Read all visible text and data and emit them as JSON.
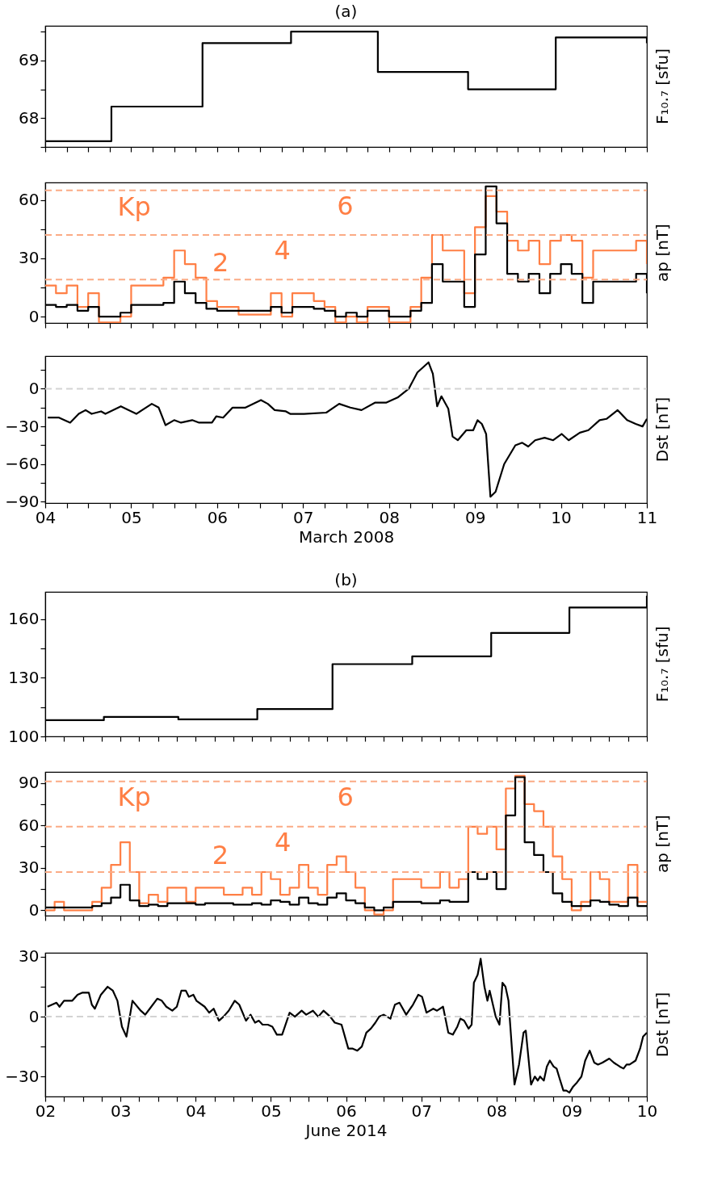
{
  "chart_data": [
    {
      "type": "step",
      "title": "(a)",
      "ylabel": "F₁₀.₇ [sfu]",
      "xlim": [
        4,
        11
      ],
      "ylim": [
        67.5,
        69.6
      ],
      "tick_labels": "y",
      "grid": false,
      "xticks": [
        {
          "value": 4,
          "label": null
        },
        {
          "value": 4.25,
          "label": null
        },
        {
          "value": 4.5,
          "label": null
        },
        {
          "value": 4.75,
          "label": null
        },
        {
          "value": 5,
          "label": null
        },
        {
          "value": 5.25,
          "label": null
        },
        {
          "value": 5.5,
          "label": null
        },
        {
          "value": 5.75,
          "label": null
        },
        {
          "value": 6,
          "label": null
        },
        {
          "value": 6.25,
          "label": null
        },
        {
          "value": 6.5,
          "label": null
        },
        {
          "value": 6.75,
          "label": null
        },
        {
          "value": 7,
          "label": null
        },
        {
          "value": 7.25,
          "label": null
        },
        {
          "value": 7.5,
          "label": null
        },
        {
          "value": 7.75,
          "label": null
        },
        {
          "value": 8,
          "label": null
        },
        {
          "value": 8.25,
          "label": null
        },
        {
          "value": 8.5,
          "label": null
        },
        {
          "value": 8.75,
          "label": null
        },
        {
          "value": 9,
          "label": null
        },
        {
          "value": 9.25,
          "label": null
        },
        {
          "value": 9.5,
          "label": null
        },
        {
          "value": 9.75,
          "label": null
        },
        {
          "value": 10,
          "label": null
        },
        {
          "value": 10.25,
          "label": null
        },
        {
          "value": 10.5,
          "label": null
        },
        {
          "value": 10.75,
          "label": null
        },
        {
          "value": 11,
          "label": null
        }
      ],
      "yticks": [
        {
          "value": 67.5,
          "label": null
        },
        68,
        {
          "value": 68.5,
          "label": null
        },
        69,
        {
          "value": 69.5,
          "label": null
        }
      ],
      "series": [
        {
          "color": "#000000",
          "x": [
            4,
            4.77,
            5.83,
            6.86,
            7.87,
            8.92,
            9.94,
            11
          ],
          "values": [
            67.6,
            68.2,
            69.3,
            69.5,
            68.8,
            68.5,
            69.4,
            69.3
          ]
        }
      ]
    },
    {
      "type": "step",
      "ylabel": "ap [nT]",
      "xlim": [
        4,
        11
      ],
      "ylim": [
        -3.3,
        69
      ],
      "tick_labels": "y",
      "grid": false,
      "xticks": [
        {
          "value": 4,
          "label": null
        },
        {
          "value": 4.25,
          "label": null
        },
        {
          "value": 4.5,
          "label": null
        },
        {
          "value": 4.75,
          "label": null
        },
        {
          "value": 5,
          "label": null
        },
        {
          "value": 5.25,
          "label": null
        },
        {
          "value": 5.5,
          "label": null
        },
        {
          "value": 5.75,
          "label": null
        },
        {
          "value": 6,
          "label": null
        },
        {
          "value": 6.25,
          "label": null
        },
        {
          "value": 6.5,
          "label": null
        },
        {
          "value": 6.75,
          "label": null
        },
        {
          "value": 7,
          "label": null
        },
        {
          "value": 7.25,
          "label": null
        },
        {
          "value": 7.5,
          "label": null
        },
        {
          "value": 7.75,
          "label": null
        },
        {
          "value": 8,
          "label": null
        },
        {
          "value": 8.25,
          "label": null
        },
        {
          "value": 8.5,
          "label": null
        },
        {
          "value": 8.75,
          "label": null
        },
        {
          "value": 9,
          "label": null
        },
        {
          "value": 9.25,
          "label": null
        },
        {
          "value": 9.5,
          "label": null
        },
        {
          "value": 9.75,
          "label": null
        },
        {
          "value": 10,
          "label": null
        },
        {
          "value": 10.25,
          "label": null
        },
        {
          "value": 10.5,
          "label": null
        },
        {
          "value": 10.75,
          "label": null
        },
        {
          "value": 11,
          "label": null
        }
      ],
      "yticks": [
        0,
        {
          "value": 15,
          "label": null
        },
        30,
        {
          "value": 45,
          "label": null
        },
        60
      ],
      "ref_lines": [
        {
          "axis": "y",
          "value": 19,
          "color": "#fbab85",
          "line_style": "dashed"
        },
        {
          "axis": "y",
          "value": 42,
          "color": "#fbab85",
          "line_style": "dashed"
        },
        {
          "axis": "y",
          "value": 65,
          "color": "#fbab85",
          "line_style": "dashed"
        }
      ],
      "annotations": [
        {
          "text": "2",
          "x": 6.04,
          "y": 19
        },
        {
          "text": "4",
          "x": 6.76,
          "y": 42
        },
        {
          "text": "6",
          "x": 7.49,
          "y": 65
        }
      ],
      "x": [
        4,
        4.125,
        4.25,
        4.375,
        4.5,
        4.625,
        4.75,
        4.875,
        5,
        5.125,
        5.25,
        5.375,
        5.5,
        5.625,
        5.75,
        5.875,
        6,
        6.125,
        6.25,
        6.375,
        6.5,
        6.625,
        6.75,
        6.875,
        7,
        7.125,
        7.25,
        7.375,
        7.5,
        7.625,
        7.75,
        7.875,
        8,
        8.125,
        8.25,
        8.375,
        8.5,
        8.625,
        8.75,
        8.875,
        9,
        9.125,
        9.25,
        9.375,
        9.5,
        9.625,
        9.75,
        9.875,
        10,
        10.125,
        10.25,
        10.375,
        10.5,
        10.625,
        10.75,
        10.875,
        11
      ],
      "series": [
        {
          "name": "Kp",
          "color": "#ff7f45",
          "values": [
            16,
            12,
            16,
            5,
            12,
            -3,
            -3,
            0,
            16,
            16,
            16,
            20,
            34,
            27,
            20,
            8,
            5,
            5,
            1,
            1,
            1,
            12,
            0,
            12,
            12,
            8,
            5,
            -3,
            0,
            -3,
            5,
            5,
            -3,
            -3,
            5,
            20,
            42,
            34,
            34,
            12,
            46,
            62,
            54,
            39,
            34,
            39,
            27,
            39,
            42,
            39,
            20,
            34,
            34,
            34,
            34,
            39,
            27
          ]
        },
        {
          "color": "#000000",
          "values": [
            6,
            5,
            6,
            3,
            5,
            0,
            0,
            2,
            6,
            6,
            6,
            7,
            18,
            12,
            7,
            4,
            3,
            3,
            3,
            3,
            3,
            5,
            2,
            5,
            5,
            4,
            3,
            0,
            2,
            0,
            3,
            3,
            0,
            0,
            3,
            7,
            27,
            18,
            18,
            5,
            32,
            67,
            48,
            22,
            18,
            22,
            12,
            22,
            27,
            22,
            7,
            18,
            18,
            18,
            18,
            22,
            12
          ]
        }
      ]
    },
    {
      "type": "line",
      "ylabel": "Dst [nT]",
      "xlabel": "March 2008",
      "xlim": [
        4,
        11
      ],
      "ylim": [
        -91,
        26
      ],
      "grid": false,
      "xticks": [
        {
          "value": 4,
          "label": "04"
        },
        {
          "value": 4.25,
          "label": null
        },
        {
          "value": 4.5,
          "label": null
        },
        {
          "value": 4.75,
          "label": null
        },
        {
          "value": 5,
          "label": "05"
        },
        {
          "value": 5.25,
          "label": null
        },
        {
          "value": 5.5,
          "label": null
        },
        {
          "value": 5.75,
          "label": null
        },
        {
          "value": 6,
          "label": "06"
        },
        {
          "value": 6.25,
          "label": null
        },
        {
          "value": 6.5,
          "label": null
        },
        {
          "value": 6.75,
          "label": null
        },
        {
          "value": 7,
          "label": "07"
        },
        {
          "value": 7.25,
          "label": null
        },
        {
          "value": 7.5,
          "label": null
        },
        {
          "value": 7.75,
          "label": null
        },
        {
          "value": 8,
          "label": "08"
        },
        {
          "value": 8.25,
          "label": null
        },
        {
          "value": 8.5,
          "label": null
        },
        {
          "value": 8.75,
          "label": null
        },
        {
          "value": 9,
          "label": "09"
        },
        {
          "value": 9.25,
          "label": null
        },
        {
          "value": 9.5,
          "label": null
        },
        {
          "value": 9.75,
          "label": null
        },
        {
          "value": 10,
          "label": "10"
        },
        {
          "value": 10.25,
          "label": null
        },
        {
          "value": 10.5,
          "label": null
        },
        {
          "value": 10.75,
          "label": null
        },
        {
          "value": 11,
          "label": "11"
        }
      ],
      "yticks": [
        -90,
        {
          "value": -75,
          "label": null
        },
        -60,
        {
          "value": -45,
          "label": null
        },
        -30,
        {
          "value": -15,
          "label": null
        },
        0,
        {
          "value": 15,
          "label": null
        }
      ],
      "ref_lines": [
        {
          "axis": "y",
          "value": 0,
          "color": "#d3d3d3",
          "line_style": "dashed"
        }
      ],
      "series": [
        {
          "color": "#000000",
          "x": [
            4.03,
            4.16,
            4.29,
            4.39,
            4.47,
            4.54,
            4.65,
            4.7,
            4.88,
            5.06,
            5.24,
            5.32,
            5.4,
            5.5,
            5.58,
            5.71,
            5.79,
            5.94,
            5.99,
            6.07,
            6.18,
            6.33,
            6.51,
            6.59,
            6.67,
            6.8,
            6.85,
            7.01,
            7.27,
            7.42,
            7.55,
            7.68,
            7.84,
            7.97,
            8.1,
            8.23,
            8.33,
            8.46,
            8.51,
            8.56,
            8.61,
            8.69,
            8.74,
            8.8,
            8.9,
            8.98,
            9.03,
            9.08,
            9.13,
            9.18,
            9.24,
            9.34,
            9.47,
            9.55,
            9.62,
            9.7,
            9.81,
            9.91,
            10.01,
            10.09,
            10.22,
            10.32,
            10.45,
            10.53,
            10.66,
            10.77,
            10.87,
            10.95,
            11.0
          ],
          "values": [
            -23,
            -23,
            -27,
            -20,
            -17,
            -20,
            -18,
            -20,
            -14,
            -20,
            -12,
            -15,
            -29,
            -25,
            -27,
            -25,
            -27,
            -27,
            -22,
            -23,
            -15,
            -15,
            -9,
            -12,
            -17,
            -18,
            -20,
            -20,
            -19,
            -12,
            -15,
            -17,
            -11,
            -11,
            -7,
            0,
            13,
            21,
            12,
            -14,
            -6,
            -16,
            -38,
            -41,
            -33,
            -33,
            -25,
            -28,
            -36,
            -86,
            -82,
            -60,
            -45,
            -43,
            -46,
            -41,
            -39,
            -41,
            -36,
            -41,
            -35,
            -33,
            -25,
            -24,
            -17,
            -25,
            -28,
            -30,
            -24
          ]
        }
      ]
    },
    {
      "type": "step",
      "title": "(b)",
      "ylabel": "F₁₀.₇ [sfu]",
      "xlim": [
        2,
        10
      ],
      "ylim": [
        100,
        174
      ],
      "tick_labels": "y",
      "grid": false,
      "xticks": [
        {
          "value": 2,
          "label": null
        },
        {
          "value": 2.25,
          "label": null
        },
        {
          "value": 2.5,
          "label": null
        },
        {
          "value": 2.75,
          "label": null
        },
        {
          "value": 3,
          "label": null
        },
        {
          "value": 3.25,
          "label": null
        },
        {
          "value": 3.5,
          "label": null
        },
        {
          "value": 3.75,
          "label": null
        },
        {
          "value": 4,
          "label": null
        },
        {
          "value": 4.25,
          "label": null
        },
        {
          "value": 4.5,
          "label": null
        },
        {
          "value": 4.75,
          "label": null
        },
        {
          "value": 5,
          "label": null
        },
        {
          "value": 5.25,
          "label": null
        },
        {
          "value": 5.5,
          "label": null
        },
        {
          "value": 5.75,
          "label": null
        },
        {
          "value": 6,
          "label": null
        },
        {
          "value": 6.25,
          "label": null
        },
        {
          "value": 6.5,
          "label": null
        },
        {
          "value": 6.75,
          "label": null
        },
        {
          "value": 7,
          "label": null
        },
        {
          "value": 7.25,
          "label": null
        },
        {
          "value": 7.5,
          "label": null
        },
        {
          "value": 7.75,
          "label": null
        },
        {
          "value": 8,
          "label": null
        },
        {
          "value": 8.25,
          "label": null
        },
        {
          "value": 8.5,
          "label": null
        },
        {
          "value": 8.75,
          "label": null
        },
        {
          "value": 9,
          "label": null
        },
        {
          "value": 9.25,
          "label": null
        },
        {
          "value": 9.5,
          "label": null
        },
        {
          "value": 9.75,
          "label": null
        },
        {
          "value": 10,
          "label": null
        }
      ],
      "yticks": [
        100,
        {
          "value": 115,
          "label": null
        },
        130,
        {
          "value": 145,
          "label": null
        },
        160
      ],
      "series": [
        {
          "color": "#000000",
          "x": [
            2,
            2.78,
            3.77,
            4.82,
            5.82,
            6.88,
            7.93,
            8.97,
            10
          ],
          "values": [
            108.3,
            110,
            108.7,
            114,
            137,
            141,
            153,
            166,
            172
          ]
        }
      ]
    },
    {
      "type": "step",
      "ylabel": "ap [nT]",
      "xlim": [
        2,
        10
      ],
      "ylim": [
        -3.8,
        97.7
      ],
      "tick_labels": "y",
      "grid": false,
      "xticks": [
        {
          "value": 2,
          "label": null
        },
        {
          "value": 2.25,
          "label": null
        },
        {
          "value": 2.5,
          "label": null
        },
        {
          "value": 2.75,
          "label": null
        },
        {
          "value": 3,
          "label": null
        },
        {
          "value": 3.25,
          "label": null
        },
        {
          "value": 3.5,
          "label": null
        },
        {
          "value": 3.75,
          "label": null
        },
        {
          "value": 4,
          "label": null
        },
        {
          "value": 4.25,
          "label": null
        },
        {
          "value": 4.5,
          "label": null
        },
        {
          "value": 4.75,
          "label": null
        },
        {
          "value": 5,
          "label": null
        },
        {
          "value": 5.25,
          "label": null
        },
        {
          "value": 5.5,
          "label": null
        },
        {
          "value": 5.75,
          "label": null
        },
        {
          "value": 6,
          "label": null
        },
        {
          "value": 6.25,
          "label": null
        },
        {
          "value": 6.5,
          "label": null
        },
        {
          "value": 6.75,
          "label": null
        },
        {
          "value": 7,
          "label": null
        },
        {
          "value": 7.25,
          "label": null
        },
        {
          "value": 7.5,
          "label": null
        },
        {
          "value": 7.75,
          "label": null
        },
        {
          "value": 8,
          "label": null
        },
        {
          "value": 8.25,
          "label": null
        },
        {
          "value": 8.5,
          "label": null
        },
        {
          "value": 8.75,
          "label": null
        },
        {
          "value": 9,
          "label": null
        },
        {
          "value": 9.25,
          "label": null
        },
        {
          "value": 9.5,
          "label": null
        },
        {
          "value": 9.75,
          "label": null
        },
        {
          "value": 10,
          "label": null
        }
      ],
      "yticks": [
        0,
        {
          "value": 15,
          "label": null
        },
        30,
        {
          "value": 45,
          "label": null
        },
        60,
        {
          "value": 75,
          "label": null
        },
        90
      ],
      "ref_lines": [
        {
          "axis": "y",
          "value": 27,
          "color": "#fbab85",
          "line_style": "dashed"
        },
        {
          "axis": "y",
          "value": 59,
          "color": "#fbab85",
          "line_style": "dashed"
        },
        {
          "axis": "y",
          "value": 91,
          "color": "#fbab85",
          "line_style": "dashed"
        }
      ],
      "annotations": [
        {
          "text": "2",
          "x": 4.33,
          "y": 27
        },
        {
          "text": "4",
          "x": 5.16,
          "y": 59
        },
        {
          "text": "6",
          "x": 5.99,
          "y": 91
        }
      ],
      "x": [
        2,
        2.125,
        2.25,
        2.375,
        2.5,
        2.625,
        2.75,
        2.875,
        3,
        3.125,
        3.25,
        3.375,
        3.5,
        3.625,
        3.75,
        3.875,
        4,
        4.125,
        4.25,
        4.375,
        4.5,
        4.625,
        4.75,
        4.875,
        5,
        5.125,
        5.25,
        5.375,
        5.5,
        5.625,
        5.75,
        5.875,
        6,
        6.125,
        6.25,
        6.375,
        6.5,
        6.625,
        6.75,
        6.875,
        7,
        7.125,
        7.25,
        7.375,
        7.5,
        7.625,
        7.75,
        7.875,
        8,
        8.125,
        8.25,
        8.375,
        8.5,
        8.625,
        8.75,
        8.875,
        9,
        9.125,
        9.25,
        9.375,
        9.5,
        9.625,
        9.75,
        9.875,
        10
      ],
      "series": [
        {
          "name": "Kp",
          "color": "#ff7f45",
          "values": [
            0,
            6,
            0,
            0,
            0,
            6,
            16,
            32,
            48,
            27,
            5,
            11,
            6,
            16,
            16,
            6,
            16,
            16,
            16,
            11,
            11,
            16,
            11,
            27,
            22,
            11,
            16,
            32,
            16,
            11,
            32,
            38,
            27,
            16,
            0,
            -3,
            0,
            22,
            22,
            22,
            16,
            16,
            27,
            16,
            22,
            59,
            54,
            59,
            43,
            86,
            95,
            75,
            70,
            59,
            38,
            22,
            0,
            6,
            27,
            22,
            6,
            6,
            32,
            6,
            6
          ]
        },
        {
          "color": "#000000",
          "values": [
            2,
            2,
            2,
            2,
            2,
            3,
            5,
            9,
            18,
            7,
            3,
            4,
            3,
            5,
            5,
            5,
            4,
            5,
            5,
            5,
            4,
            4,
            5,
            4,
            7,
            6,
            4,
            9,
            5,
            4,
            9,
            12,
            7,
            5,
            2,
            0,
            2,
            6,
            6,
            6,
            5,
            5,
            7,
            6,
            6,
            27,
            22,
            27,
            15,
            67,
            94,
            48,
            39,
            27,
            12,
            6,
            3,
            3,
            7,
            6,
            4,
            3,
            9,
            3,
            3
          ]
        }
      ]
    },
    {
      "type": "line",
      "ylabel": "Dst [nT]",
      "xlabel": "June 2014",
      "xlim": [
        2,
        10
      ],
      "ylim": [
        -40,
        32
      ],
      "grid": false,
      "xticks": [
        {
          "value": 2,
          "label": "02"
        },
        {
          "value": 2.25,
          "label": null
        },
        {
          "value": 2.5,
          "label": null
        },
        {
          "value": 2.75,
          "label": null
        },
        {
          "value": 3,
          "label": "03"
        },
        {
          "value": 3.25,
          "label": null
        },
        {
          "value": 3.5,
          "label": null
        },
        {
          "value": 3.75,
          "label": null
        },
        {
          "value": 4,
          "label": "04"
        },
        {
          "value": 4.25,
          "label": null
        },
        {
          "value": 4.5,
          "label": null
        },
        {
          "value": 4.75,
          "label": null
        },
        {
          "value": 5,
          "label": "05"
        },
        {
          "value": 5.25,
          "label": null
        },
        {
          "value": 5.5,
          "label": null
        },
        {
          "value": 5.75,
          "label": null
        },
        {
          "value": 6,
          "label": "06"
        },
        {
          "value": 6.25,
          "label": null
        },
        {
          "value": 6.5,
          "label": null
        },
        {
          "value": 6.75,
          "label": null
        },
        {
          "value": 7,
          "label": "07"
        },
        {
          "value": 7.25,
          "label": null
        },
        {
          "value": 7.5,
          "label": null
        },
        {
          "value": 7.75,
          "label": null
        },
        {
          "value": 8,
          "label": "08"
        },
        {
          "value": 8.25,
          "label": null
        },
        {
          "value": 8.5,
          "label": null
        },
        {
          "value": 8.75,
          "label": null
        },
        {
          "value": 9,
          "label": "09"
        },
        {
          "value": 9.25,
          "label": null
        },
        {
          "value": 9.5,
          "label": null
        },
        {
          "value": 9.75,
          "label": null
        },
        {
          "value": 10,
          "label": "10"
        }
      ],
      "yticks": [
        -30,
        {
          "value": -15,
          "label": null
        },
        0,
        {
          "value": 15,
          "label": null
        },
        30
      ],
      "ref_lines": [
        {
          "axis": "y",
          "value": 0,
          "color": "#d3d3d3",
          "line_style": "dashed"
        }
      ],
      "series": [
        {
          "color": "#000000",
          "x": [
            2.03,
            2.15,
            2.19,
            2.25,
            2.36,
            2.43,
            2.49,
            2.58,
            2.62,
            2.66,
            2.74,
            2.83,
            2.9,
            2.96,
            3.02,
            3.08,
            3.16,
            3.27,
            3.33,
            3.39,
            3.49,
            3.55,
            3.61,
            3.69,
            3.75,
            3.81,
            3.87,
            3.91,
            3.97,
            4.01,
            4.12,
            4.18,
            4.24,
            4.31,
            4.37,
            4.44,
            4.52,
            4.58,
            4.67,
            4.73,
            4.79,
            4.84,
            4.89,
            4.96,
            5.02,
            5.08,
            5.15,
            5.25,
            5.32,
            5.41,
            5.47,
            5.56,
            5.63,
            5.7,
            5.79,
            5.85,
            5.94,
            6.03,
            6.09,
            6.15,
            6.21,
            6.27,
            6.33,
            6.39,
            6.44,
            6.5,
            6.59,
            6.65,
            6.71,
            6.8,
            6.89,
            6.96,
            7.01,
            7.07,
            7.16,
            7.21,
            7.29,
            7.36,
            7.42,
            7.48,
            7.52,
            7.57,
            7.63,
            7.67,
            7.7,
            7.75,
            7.79,
            7.84,
            7.88,
            7.91,
            7.99,
            8.04,
            8.08,
            8.12,
            8.16,
            8.24,
            8.3,
            8.36,
            8.39,
            8.46,
            8.51,
            8.55,
            8.58,
            8.63,
            8.67,
            8.71,
            8.76,
            8.8,
            8.84,
            8.89,
            8.93,
            8.97,
            9.02,
            9.07,
            9.13,
            9.18,
            9.24,
            9.3,
            9.35,
            9.41,
            9.5,
            9.56,
            9.64,
            9.69,
            9.73,
            9.77,
            9.85,
            9.91,
            9.95,
            10.0
          ],
          "values": [
            5,
            7,
            5,
            8,
            8,
            11,
            12,
            12,
            6,
            4,
            11,
            15,
            13,
            8,
            -5,
            -10,
            8,
            3,
            1,
            4,
            9,
            8,
            5,
            3,
            5,
            13,
            13,
            10,
            11,
            8,
            5,
            2,
            4,
            -2,
            0,
            3,
            8,
            6,
            -2,
            1,
            -3,
            -2,
            -4,
            -4,
            -5,
            -9,
            -9,
            2,
            0,
            3,
            1,
            3,
            0,
            3,
            0,
            -3,
            -4,
            -16,
            -16,
            -17,
            -15,
            -8,
            -6,
            -3,
            0,
            1,
            -1,
            6,
            7,
            1,
            6,
            11,
            10,
            2,
            4,
            3,
            5,
            -8,
            -9,
            -5,
            -1,
            -2,
            -6,
            -4,
            17,
            21,
            29,
            15,
            8,
            13,
            0,
            -4,
            17,
            15,
            8,
            -34,
            -24,
            -8,
            -7,
            -34,
            -30,
            -32,
            -30,
            -32,
            -25,
            -22,
            -25,
            -26,
            -31,
            -37,
            -37,
            -38,
            -35,
            -33,
            -30,
            -22,
            -17,
            -23,
            -24,
            -23,
            -21,
            -23,
            -25,
            -26,
            -24,
            -24,
            -22,
            -16,
            -10,
            -8
          ]
        }
      ]
    }
  ]
}
